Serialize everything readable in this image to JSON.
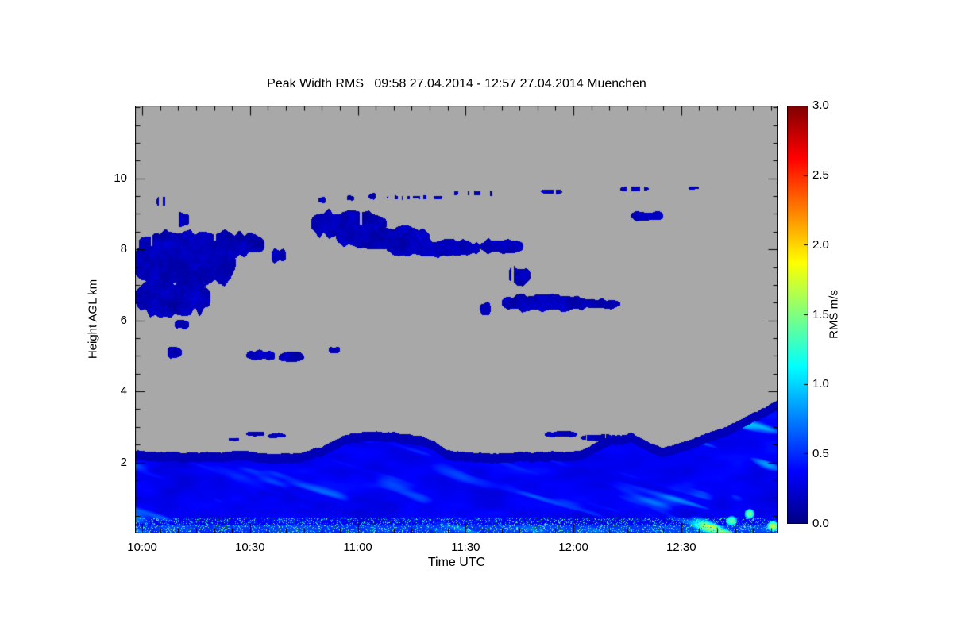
{
  "chart_data": {
    "type": "heatmap",
    "title": "Peak Width RMS   09:58 27.04.2014 - 12:57 27.04.2014 Muenchen",
    "xlabel": "Time UTC",
    "ylabel": "Height AGL km",
    "units": "m/s",
    "x_domain_minutes": [
      598,
      777
    ],
    "x_major_ticks": [
      {
        "t": 600,
        "label": "10:00"
      },
      {
        "t": 630,
        "label": "10:30"
      },
      {
        "t": 660,
        "label": "11:00"
      },
      {
        "t": 690,
        "label": "11:30"
      },
      {
        "t": 720,
        "label": "12:00"
      },
      {
        "t": 750,
        "label": "12:30"
      }
    ],
    "x_minor_step_minutes": 5,
    "y_domain_km": [
      0,
      12.05
    ],
    "y_major_ticks": [
      2,
      4,
      6,
      8,
      10
    ],
    "y_minor_step_km": 0.5,
    "no_data_color": "#a8a8a8",
    "frame_color": "#000000",
    "colorbar": {
      "label": "RMS m/s",
      "min": 0.0,
      "max": 3.0,
      "ticks": [
        0.0,
        0.5,
        1.0,
        1.5,
        2.0,
        2.5,
        3.0
      ],
      "tick_labels": [
        "0.0",
        "0.5",
        "1.0",
        "1.5",
        "2.0",
        "2.5",
        "3.0"
      ]
    },
    "colormap_stops": [
      [
        0.0,
        [
          0,
          0,
          131
        ]
      ],
      [
        0.125,
        [
          0,
          0,
          255
        ]
      ],
      [
        0.375,
        [
          0,
          255,
          255
        ]
      ],
      [
        0.625,
        [
          255,
          255,
          0
        ]
      ],
      [
        0.875,
        [
          255,
          0,
          0
        ]
      ],
      [
        1.0,
        [
          127,
          0,
          0
        ]
      ]
    ],
    "cloud_value_range": [
      0.05,
      0.25
    ],
    "cloud_blobs": [
      {
        "t": [
          598,
          626
        ],
        "h": [
          6.8,
          8.45
        ]
      },
      {
        "t": [
          598,
          619
        ],
        "h": [
          6.05,
          7.3
        ]
      },
      {
        "t": [
          599,
          634
        ],
        "h": [
          7.7,
          8.6
        ],
        "patchy": 0.15
      },
      {
        "t": [
          604,
          607
        ],
        "h": [
          9.2,
          9.5
        ],
        "patchy": 0.4
      },
      {
        "t": [
          608,
          613
        ],
        "h": [
          8.55,
          9.15
        ],
        "patchy": 0.45
      },
      {
        "t": [
          609,
          613
        ],
        "h": [
          5.75,
          6.05
        ]
      },
      {
        "t": [
          607,
          611
        ],
        "h": [
          4.9,
          5.3
        ]
      },
      {
        "t": [
          636,
          640
        ],
        "h": [
          7.6,
          8.05
        ]
      },
      {
        "t": [
          629,
          637
        ],
        "h": [
          4.85,
          5.2
        ]
      },
      {
        "t": [
          638,
          645
        ],
        "h": [
          4.8,
          5.15
        ]
      },
      {
        "t": [
          652,
          655
        ],
        "h": [
          5.05,
          5.3
        ]
      },
      {
        "t": [
          647,
          668
        ],
        "h": [
          8.25,
          9.2
        ],
        "patchy": 0.2
      },
      {
        "t": [
          654,
          680
        ],
        "h": [
          7.95,
          8.75
        ],
        "patchy": 0.1
      },
      {
        "t": [
          668,
          694
        ],
        "h": [
          7.75,
          8.35
        ]
      },
      {
        "t": [
          649,
          651
        ],
        "h": [
          9.3,
          9.5
        ]
      },
      {
        "t": [
          657,
          659
        ],
        "h": [
          9.35,
          9.55
        ]
      },
      {
        "t": [
          663,
          665
        ],
        "h": [
          9.4,
          9.6
        ]
      },
      {
        "t": [
          668,
          684
        ],
        "h": [
          9.4,
          9.55
        ],
        "patchy": 0.55
      },
      {
        "t": [
          686,
          699
        ],
        "h": [
          9.5,
          9.68
        ],
        "patchy": 0.55
      },
      {
        "t": [
          694,
          706
        ],
        "h": [
          7.85,
          8.35
        ]
      },
      {
        "t": [
          702,
          708
        ],
        "h": [
          6.95,
          7.6
        ],
        "patchy": 0.35
      },
      {
        "t": [
          694,
          697
        ],
        "h": [
          6.15,
          6.55
        ]
      },
      {
        "t": [
          700,
          724
        ],
        "h": [
          6.2,
          6.8
        ]
      },
      {
        "t": [
          720,
          733
        ],
        "h": [
          6.3,
          6.65
        ]
      },
      {
        "t": [
          711,
          717
        ],
        "h": [
          9.55,
          9.72
        ],
        "patchy": 0.4
      },
      {
        "t": [
          733,
          741
        ],
        "h": [
          9.63,
          9.8
        ],
        "patchy": 0.35
      },
      {
        "t": [
          752,
          755
        ],
        "h": [
          9.68,
          9.8
        ]
      },
      {
        "t": [
          736,
          745
        ],
        "h": [
          8.78,
          9.12
        ]
      },
      {
        "t": [
          624,
          627
        ],
        "h": [
          2.6,
          2.72
        ]
      },
      {
        "t": [
          629,
          634
        ],
        "h": [
          2.73,
          2.9
        ]
      },
      {
        "t": [
          635,
          640
        ],
        "h": [
          2.68,
          2.84
        ]
      },
      {
        "t": [
          712,
          721
        ],
        "h": [
          2.7,
          2.9
        ],
        "patchy": 0.2
      },
      {
        "t": [
          722,
          731
        ],
        "h": [
          2.6,
          2.82
        ],
        "patchy": 0.2
      }
    ],
    "boundary_layer": {
      "base_value": 0.34,
      "top_profile": [
        [
          598,
          2.35
        ],
        [
          604,
          2.32
        ],
        [
          612,
          2.28
        ],
        [
          620,
          2.28
        ],
        [
          628,
          2.32
        ],
        [
          636,
          2.25
        ],
        [
          644,
          2.28
        ],
        [
          650,
          2.45
        ],
        [
          656,
          2.75
        ],
        [
          662,
          2.88
        ],
        [
          670,
          2.86
        ],
        [
          676,
          2.78
        ],
        [
          681,
          2.6
        ],
        [
          685,
          2.35
        ],
        [
          692,
          2.28
        ],
        [
          700,
          2.26
        ],
        [
          708,
          2.3
        ],
        [
          716,
          2.3
        ],
        [
          722,
          2.35
        ],
        [
          727,
          2.6
        ],
        [
          731,
          2.78
        ],
        [
          736,
          2.82
        ],
        [
          740,
          2.65
        ],
        [
          744,
          2.42
        ],
        [
          748,
          2.5
        ],
        [
          753,
          2.65
        ],
        [
          758,
          2.85
        ],
        [
          763,
          3.05
        ],
        [
          768,
          3.3
        ],
        [
          772,
          3.5
        ],
        [
          777,
          3.78
        ]
      ],
      "hot_spots": [
        {
          "t": 764,
          "h": 0.35,
          "v": 1.45,
          "rt": 1.6,
          "rh": 0.14
        },
        {
          "t": 769,
          "h": 0.55,
          "v": 1.5,
          "rt": 1.4,
          "rh": 0.14
        },
        {
          "t": 775.5,
          "h": 0.2,
          "v": 1.7,
          "rt": 1.6,
          "rh": 0.15
        }
      ]
    }
  }
}
